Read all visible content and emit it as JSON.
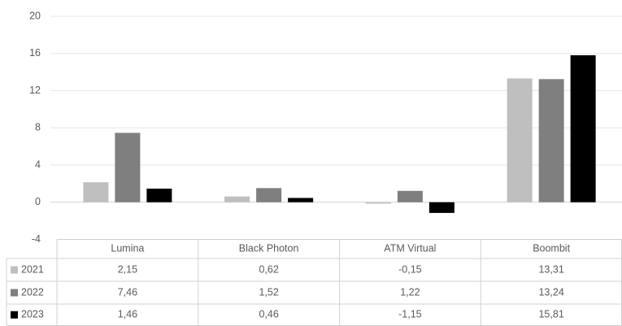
{
  "chart_data": {
    "type": "bar",
    "categories": [
      "Lumina",
      "Black Photon",
      "ATM Virtual",
      "Boombit"
    ],
    "series": [
      {
        "name": "2021",
        "color": "#bfbfbf",
        "values": [
          2.15,
          0.62,
          -0.15,
          13.31
        ],
        "value_labels": [
          "2,15",
          "0,62",
          "-0,15",
          "13,31"
        ]
      },
      {
        "name": "2022",
        "color": "#7f7f7f",
        "values": [
          7.46,
          1.52,
          1.22,
          13.24
        ],
        "value_labels": [
          "7,46",
          "1,52",
          "1,22",
          "13,24"
        ]
      },
      {
        "name": "2023",
        "color": "#000000",
        "values": [
          1.46,
          0.46,
          -1.15,
          15.81
        ],
        "value_labels": [
          "1,46",
          "0,46",
          "-1,15",
          "15,81"
        ]
      }
    ],
    "ylim": [
      -4,
      20
    ],
    "yticks": [
      -4,
      0,
      4,
      8,
      12,
      16,
      20
    ],
    "grid": true
  }
}
